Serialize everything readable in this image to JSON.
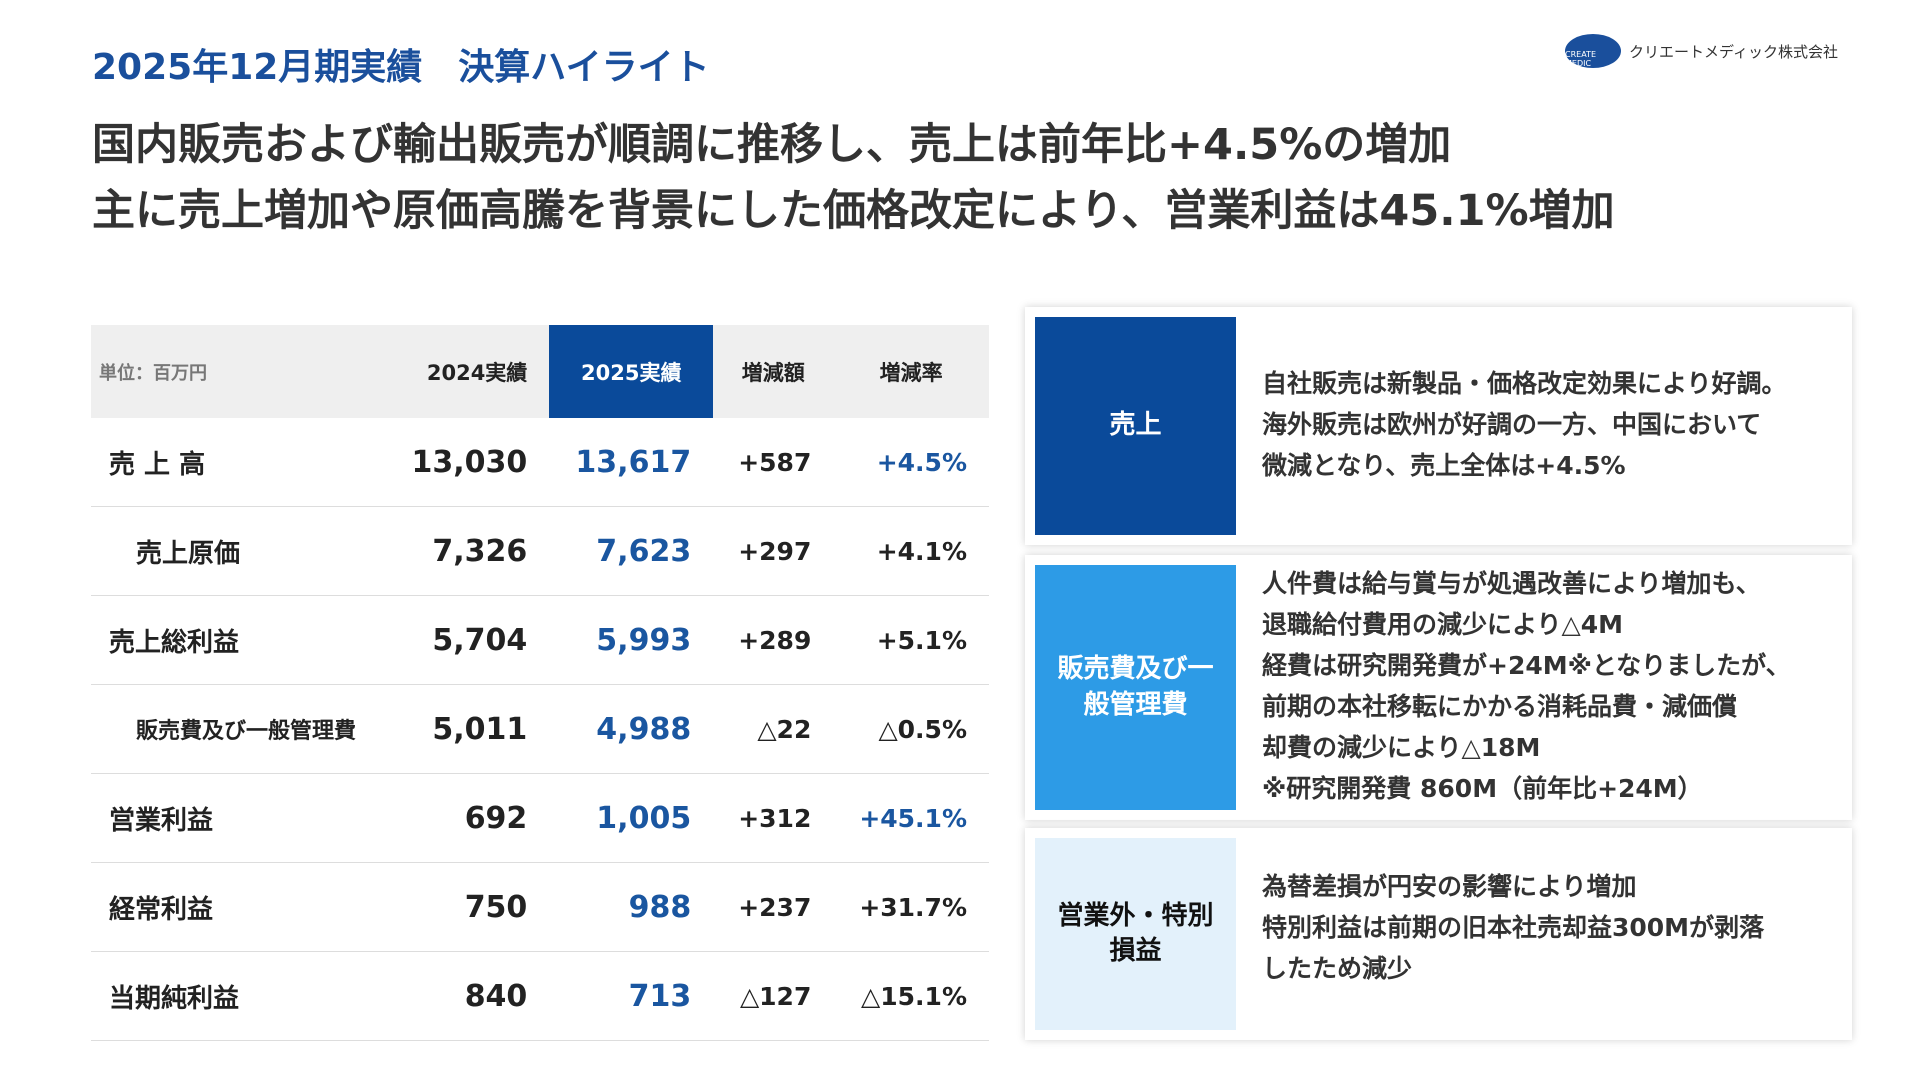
{
  "header": {
    "title": "2025年12月期実績　決算ハイライト",
    "company": "クリエートメディック株式会社",
    "logo_text": "CREATE MEDIC"
  },
  "headline": [
    "国内販売および輸出販売が順調に推移し、売上は前年比+4.5%の増加",
    "主に売上増加や原価高騰を背景にした価格改定により、営業利益は45.1%増加"
  ],
  "table": {
    "header": [
      "単位：百万円",
      "2024実績",
      "2025実績",
      "増減額",
      "増減率"
    ],
    "rows": [
      [
        "売 上 高",
        "13,030",
        "13,617",
        "+587",
        "+4.5%"
      ],
      [
        "売上原価",
        "7,326",
        "7,623",
        "+297",
        "+4.1%"
      ],
      [
        "売上総利益",
        "5,704",
        "5,993",
        "+289",
        "+5.1%"
      ],
      [
        "販売費及び一般管理費",
        "5,011",
        "4,988",
        "△22",
        "△0.5%"
      ],
      [
        "営業利益",
        "692",
        "1,005",
        "+312",
        "+45.1%"
      ],
      [
        "経常利益",
        "750",
        "988",
        "+237",
        "+31.7%"
      ],
      [
        "当期純利益",
        "840",
        "713",
        "△127",
        "△15.1%"
      ]
    ]
  },
  "cards": [
    {
      "label": "売上",
      "lines": [
        "自社販売は新製品・価格改定効果により好調。",
        "海外販売は欧州が好調の一方、中国において",
        "微減となり、売上全体は+4.5%"
      ]
    },
    {
      "label": "販売費及び一般管理費",
      "lines": [
        "人件費は給与賞与が処遇改善により増加も、",
        "退職給付費用の減少により△4M",
        "経費は研究開発費が+24M※となりましたが、",
        "前期の本社移転にかかる消耗品費・減価償",
        "却費の減少により△18M",
        "※研究開発費 860M（前年比+24M）"
      ]
    },
    {
      "label": "営業外・特別損益",
      "lines": [
        "為替差損が円安の影響により増加",
        "特別利益は前期の旧本社売却益300Mが剥落",
        "したため減少"
      ]
    }
  ]
}
